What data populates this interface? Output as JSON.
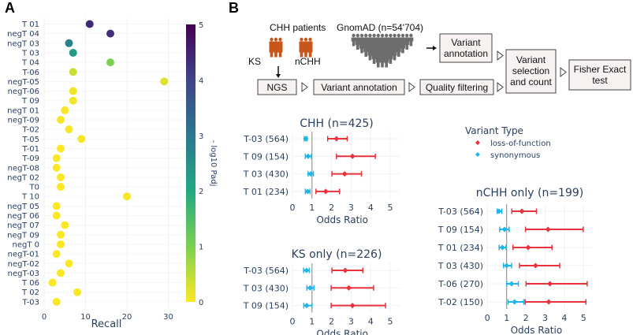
{
  "panels": {
    "a_label": "A",
    "b_label": "B"
  },
  "flowchart": {
    "chh_patients": "CHH patients",
    "ks": "KS",
    "nchh": "nCHH",
    "gnomad": "GnomAD (n=54'704)",
    "ngs": "NGS",
    "variant_annotation_1": "Variant annotation",
    "quality_filtering": "Quality filtering",
    "variant_annotation_2": [
      "Variant",
      "annotation"
    ],
    "variant_selection": [
      "Variant",
      "selection",
      "and count"
    ],
    "fisher": [
      "Fisher Exact",
      "test"
    ],
    "patient_color": "#c8561a",
    "gnomad_color": "#6d6d6d"
  },
  "legend": {
    "title": "Variant Type",
    "items": [
      {
        "label": "loss-of-function",
        "color": "#e8323c"
      },
      {
        "label": "synonymous",
        "color": "#1fb6e6"
      }
    ]
  },
  "chart_data": [
    {
      "type": "scatter",
      "title": "",
      "xlabel": "Recall",
      "ylabel": "",
      "xlim": [
        0,
        35
      ],
      "xticks": [
        0,
        10,
        20,
        30
      ],
      "grid": true,
      "colorbar": {
        "title": "- log10 Padj",
        "range": [
          0,
          5
        ],
        "ticks": [
          0,
          1,
          2,
          3,
          4,
          5
        ],
        "colorscale": "viridis-reversed"
      },
      "categories": [
        "T 01",
        "negT 04",
        "negT 03",
        "T 03",
        "T 04",
        "T-06",
        "negT-05",
        "negT-06",
        "T 09",
        "negT 01",
        "negT-09",
        "T-02",
        "T-05",
        "T-01",
        "T-09",
        "negT-08",
        "negT 02",
        "T0",
        "T 10",
        "negT 05",
        "negT 06",
        "negT 07",
        "negT 09",
        "negT 0",
        "negT-01",
        "negT-02",
        "negT-03",
        "T 06",
        "T 02",
        "T-03"
      ],
      "recall": [
        11,
        16,
        6,
        7,
        16,
        7,
        29,
        7,
        7,
        5,
        4,
        6,
        9,
        4,
        3,
        3,
        4,
        4,
        20,
        3,
        3,
        5,
        4,
        4,
        3,
        6,
        4,
        2,
        8,
        3
      ],
      "neg_log10_padj": [
        4.4,
        4.3,
        2.8,
        2.3,
        1.0,
        0.4,
        0.25,
        0.1,
        0.1,
        0.05,
        0.05,
        0.05,
        0.05,
        0.02,
        0.02,
        0.02,
        0.02,
        0.02,
        0.05,
        0.02,
        0.02,
        0.02,
        0.02,
        0.02,
        0.02,
        0.02,
        0.02,
        0.02,
        0.02,
        0.02
      ]
    },
    {
      "type": "scatter",
      "title": "CHH (n=425)",
      "xlabel": "Odds Ratio",
      "xlim": [
        0,
        5.5
      ],
      "xticks": [
        0,
        1,
        2,
        3,
        4,
        5
      ],
      "reference_line": 1,
      "categories": [
        "T-03 (564)",
        "T 09 (154)",
        "T 03 (430)",
        "T 01 (234)"
      ],
      "series": [
        {
          "name": "loss-of-function",
          "or": [
            2.25,
            3.07,
            2.67,
            1.7
          ],
          "lo": [
            1.8,
            2.25,
            2.02,
            1.2
          ],
          "hi": [
            2.8,
            4.24,
            3.53,
            2.41
          ]
        },
        {
          "name": "synonymous",
          "or": [
            0.68,
            0.8,
            0.93,
            0.78
          ],
          "lo": [
            0.6,
            0.66,
            0.8,
            0.66
          ],
          "hi": [
            0.75,
            0.97,
            1.07,
            0.9
          ]
        }
      ]
    },
    {
      "type": "scatter",
      "title": "KS only (n=226)",
      "xlabel": "Odds Ratio",
      "xlim": [
        0,
        5.5
      ],
      "xticks": [
        0,
        1,
        2,
        3,
        4,
        5
      ],
      "reference_line": 1,
      "categories": [
        "T-03 (564)",
        "T 03 (430)",
        "T 09 (154)"
      ],
      "series": [
        {
          "name": "loss-of-function",
          "or": [
            2.7,
            2.88,
            3.07
          ],
          "lo": [
            2.02,
            1.98,
            1.98
          ],
          "hi": [
            3.6,
            4.15,
            4.76
          ]
        },
        {
          "name": "synonymous",
          "or": [
            0.72,
            0.9,
            0.73
          ],
          "lo": [
            0.57,
            0.74,
            0.58
          ],
          "hi": [
            0.86,
            1.1,
            1.0
          ]
        }
      ]
    },
    {
      "type": "scatter",
      "title": "nCHH only (n=199)",
      "xlabel": "Odds Ratio",
      "xlim": [
        0,
        5.5
      ],
      "xticks": [
        0,
        1,
        2,
        3,
        4,
        5
      ],
      "reference_line": 1,
      "categories": [
        "T-03 (564)",
        "T 09 (154)",
        "T 01 (234)",
        "T 03 (430)",
        "T-06 (270)",
        "T-02 (150)"
      ],
      "series": [
        {
          "name": "loss-of-function",
          "or": [
            1.79,
            3.15,
            2.12,
            2.5,
            3.25,
            3.19
          ],
          "lo": [
            1.27,
            1.98,
            1.33,
            1.67,
            2.01,
            1.96
          ],
          "hi": [
            2.55,
            4.98,
            3.36,
            3.76,
            5.19,
            5.12
          ]
        },
        {
          "name": "synonymous",
          "or": [
            0.6,
            0.89,
            0.78,
            1.0,
            1.26,
            1.41
          ],
          "lo": [
            0.51,
            0.64,
            0.61,
            0.84,
            1.0,
            1.07
          ],
          "hi": [
            0.75,
            1.13,
            0.97,
            1.26,
            1.61,
            1.89
          ]
        }
      ]
    }
  ]
}
